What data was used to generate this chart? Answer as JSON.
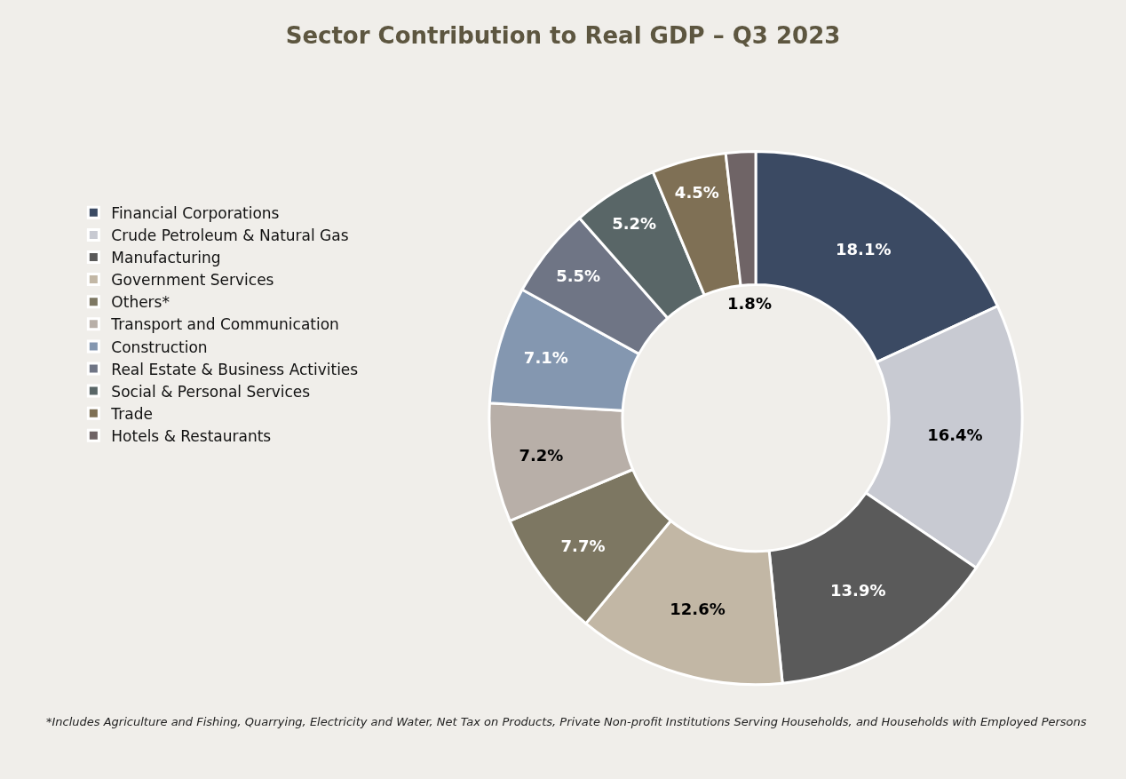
{
  "chart_data": {
    "type": "donut",
    "title": "Sector Contribution to Real GDP – Q3 2023",
    "categories": [
      "Financial Corporations",
      "Crude Petroleum & Natural Gas",
      "Manufacturing",
      "Government Services",
      "Others*",
      "Transport and Communication",
      "Construction",
      "Real Estate & Business Activities",
      "Social & Personal Services",
      "Trade",
      "Hotels & Restaurants"
    ],
    "values": [
      18.1,
      16.4,
      13.9,
      12.6,
      7.7,
      7.2,
      7.1,
      5.5,
      5.2,
      4.5,
      1.8
    ],
    "colors": [
      "#3b4a63",
      "#c8cad2",
      "#5a5a5a",
      "#c2b7a5",
      "#7d7762",
      "#b8afa8",
      "#8497b0",
      "#6f7585",
      "#596667",
      "#7f7055",
      "#6f6466"
    ],
    "value_labels": [
      "18.1%",
      "16.4%",
      "13.9%",
      "12.6%",
      "7.7%",
      "7.2%",
      "7.1%",
      "5.5%",
      "5.2%",
      "4.5%",
      "1.8%"
    ],
    "legend": "left",
    "annotations": [
      "*Includes Agriculture and Fishing, Quarrying, Electricity and Water, Net Tax on Products, Private Non-profit Institutions Serving Households, and Households with Employed Persons"
    ]
  }
}
